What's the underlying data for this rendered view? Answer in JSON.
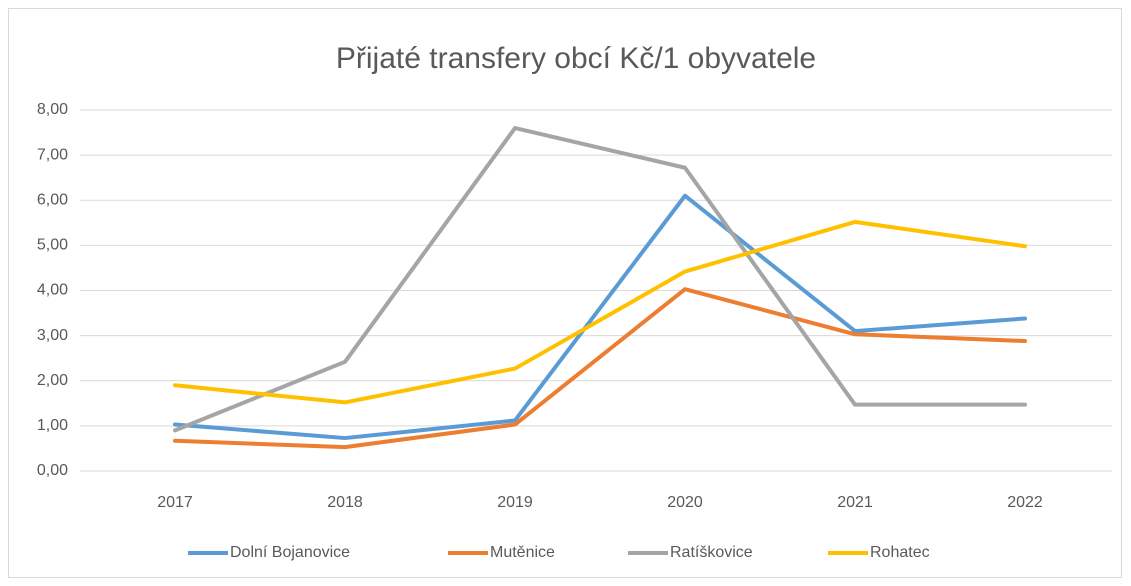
{
  "chart_data": {
    "type": "line",
    "title": "Přijaté transfery obcí Kč/1 obyvatele",
    "categories": [
      "2017",
      "2018",
      "2019",
      "2020",
      "2021",
      "2022"
    ],
    "series": [
      {
        "name": "Dolní Bojanovice",
        "color": "#5b9bd5",
        "values": [
          1.03,
          0.73,
          1.12,
          6.1,
          3.1,
          3.38
        ]
      },
      {
        "name": "Mutěnice",
        "color": "#ed7d31",
        "values": [
          0.67,
          0.53,
          1.03,
          4.03,
          3.03,
          2.88
        ]
      },
      {
        "name": "Ratíškovice",
        "color": "#a5a5a5",
        "values": [
          0.9,
          2.42,
          7.6,
          6.72,
          1.47,
          1.47
        ]
      },
      {
        "name": "Rohatec",
        "color": "#ffc000",
        "values": [
          1.9,
          1.52,
          2.27,
          4.42,
          5.52,
          4.98
        ]
      }
    ],
    "ylim": [
      0,
      8
    ],
    "yticks": [
      {
        "value": 0,
        "label": "0,00"
      },
      {
        "value": 1,
        "label": "1,00"
      },
      {
        "value": 2,
        "label": "2,00"
      },
      {
        "value": 3,
        "label": "3,00"
      },
      {
        "value": 4,
        "label": "4,00"
      },
      {
        "value": 5,
        "label": "5,00"
      },
      {
        "value": 6,
        "label": "6,00"
      },
      {
        "value": 7,
        "label": "7,00"
      },
      {
        "value": 8,
        "label": "8,00"
      }
    ],
    "grid": true,
    "legend": "bottom"
  }
}
